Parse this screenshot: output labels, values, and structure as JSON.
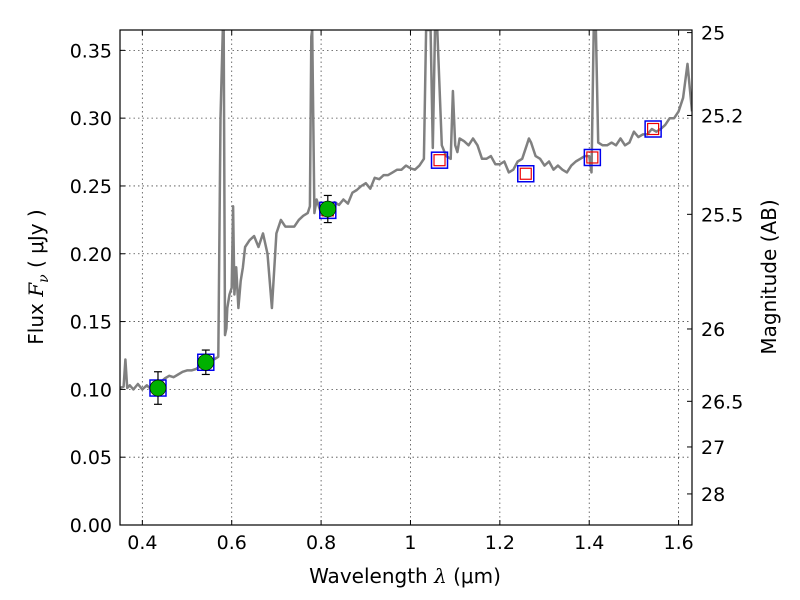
{
  "chart_data": {
    "type": "scatter",
    "x_label": {
      "prefix": "Wavelength ",
      "symbol": "λ",
      "unit": "(μm)"
    },
    "y_label": {
      "prefix": "Flux ",
      "symbol": "F",
      "subscript": "ν",
      "unit": "( μJy )"
    },
    "y2_label": "Magnitude (AB)",
    "xlim": [
      0.35,
      1.63
    ],
    "ylim": [
      0.0,
      0.365
    ],
    "grid": true,
    "x_ticks": [
      0.4,
      0.6,
      0.8,
      1.0,
      1.2,
      1.4,
      1.6
    ],
    "x_tick_labels": [
      "0.4",
      "0.6",
      "0.8",
      "1",
      "1.2",
      "1.4",
      "1.6"
    ],
    "y_ticks": [
      0.0,
      0.05,
      0.1,
      0.15,
      0.2,
      0.25,
      0.3,
      0.35
    ],
    "y_tick_labels": [
      "0.00",
      "0.05",
      "0.10",
      "0.15",
      "0.20",
      "0.25",
      "0.30",
      "0.35"
    ],
    "y2_ticks": [
      25,
      25.2,
      25.5,
      26,
      26.5,
      27,
      28
    ],
    "y2_tick_labels": [
      "25",
      "25.2",
      "25.5",
      "26",
      "26.5",
      "27",
      "28"
    ],
    "colors": {
      "spectrum": "#808080",
      "detection_fill": "#00b000",
      "box_outer": "#0000ee",
      "box_inner": "#ee0000",
      "errorbar": "#000000"
    },
    "model_spectrum": {
      "x": [
        0.35,
        0.358,
        0.362,
        0.366,
        0.372,
        0.38,
        0.39,
        0.4,
        0.41,
        0.42,
        0.43,
        0.44,
        0.45,
        0.46,
        0.47,
        0.48,
        0.49,
        0.5,
        0.51,
        0.52,
        0.53,
        0.54,
        0.55,
        0.56,
        0.57,
        0.575,
        0.58,
        0.582,
        0.585,
        0.588,
        0.59,
        0.595,
        0.6,
        0.603,
        0.606,
        0.61,
        0.615,
        0.62,
        0.625,
        0.63,
        0.64,
        0.65,
        0.66,
        0.67,
        0.68,
        0.69,
        0.7,
        0.71,
        0.72,
        0.73,
        0.74,
        0.75,
        0.76,
        0.77,
        0.775,
        0.778,
        0.78,
        0.785,
        0.79,
        0.8,
        0.81,
        0.82,
        0.83,
        0.84,
        0.85,
        0.86,
        0.87,
        0.88,
        0.89,
        0.9,
        0.91,
        0.92,
        0.93,
        0.94,
        0.95,
        0.96,
        0.97,
        0.98,
        0.99,
        1.0,
        1.01,
        1.02,
        1.03,
        1.035,
        1.04,
        1.045,
        1.05,
        1.055,
        1.06,
        1.07,
        1.08,
        1.09,
        1.095,
        1.1,
        1.105,
        1.11,
        1.12,
        1.13,
        1.14,
        1.15,
        1.16,
        1.17,
        1.18,
        1.19,
        1.2,
        1.21,
        1.22,
        1.23,
        1.24,
        1.25,
        1.26,
        1.265,
        1.27,
        1.28,
        1.29,
        1.3,
        1.31,
        1.32,
        1.33,
        1.34,
        1.35,
        1.36,
        1.37,
        1.38,
        1.39,
        1.4,
        1.405,
        1.41,
        1.415,
        1.42,
        1.43,
        1.44,
        1.45,
        1.46,
        1.47,
        1.48,
        1.49,
        1.5,
        1.51,
        1.52,
        1.53,
        1.54,
        1.55,
        1.56,
        1.57,
        1.58,
        1.59,
        1.6,
        1.61,
        1.62,
        1.63
      ],
      "y": [
        0.101,
        0.102,
        0.122,
        0.101,
        0.103,
        0.1,
        0.104,
        0.1,
        0.103,
        0.1,
        0.104,
        0.105,
        0.108,
        0.11,
        0.109,
        0.111,
        0.113,
        0.114,
        0.114,
        0.115,
        0.117,
        0.119,
        0.12,
        0.122,
        0.124,
        0.3,
        0.365,
        0.365,
        0.14,
        0.145,
        0.16,
        0.17,
        0.175,
        0.235,
        0.17,
        0.19,
        0.16,
        0.18,
        0.19,
        0.205,
        0.21,
        0.213,
        0.205,
        0.215,
        0.2,
        0.16,
        0.215,
        0.225,
        0.22,
        0.22,
        0.22,
        0.225,
        0.228,
        0.23,
        0.235,
        0.36,
        0.365,
        0.23,
        0.24,
        0.23,
        0.232,
        0.236,
        0.238,
        0.236,
        0.24,
        0.237,
        0.245,
        0.247,
        0.25,
        0.252,
        0.248,
        0.256,
        0.255,
        0.258,
        0.258,
        0.26,
        0.262,
        0.262,
        0.265,
        0.263,
        0.262,
        0.265,
        0.27,
        0.365,
        0.365,
        0.365,
        0.278,
        0.365,
        0.365,
        0.28,
        0.272,
        0.27,
        0.32,
        0.28,
        0.275,
        0.285,
        0.283,
        0.28,
        0.285,
        0.28,
        0.27,
        0.27,
        0.272,
        0.266,
        0.266,
        0.268,
        0.26,
        0.262,
        0.268,
        0.27,
        0.28,
        0.285,
        0.282,
        0.272,
        0.27,
        0.265,
        0.268,
        0.262,
        0.265,
        0.262,
        0.26,
        0.265,
        0.268,
        0.27,
        0.272,
        0.272,
        0.26,
        0.365,
        0.365,
        0.282,
        0.28,
        0.28,
        0.282,
        0.28,
        0.285,
        0.28,
        0.282,
        0.29,
        0.286,
        0.288,
        0.288,
        0.292,
        0.29,
        0.292,
        0.295,
        0.3,
        0.3,
        0.305,
        0.315,
        0.34,
        0.305
      ]
    },
    "photometry_boxes": {
      "x": [
        0.435,
        0.542,
        0.815,
        1.065,
        1.258,
        1.407,
        1.543
      ],
      "y": [
        0.101,
        0.12,
        0.232,
        0.269,
        0.259,
        0.271,
        0.292
      ]
    },
    "detections": {
      "x": [
        0.435,
        0.542,
        0.815
      ],
      "y": [
        0.101,
        0.12,
        0.233
      ],
      "err": [
        0.012,
        0.009,
        0.01
      ]
    }
  }
}
